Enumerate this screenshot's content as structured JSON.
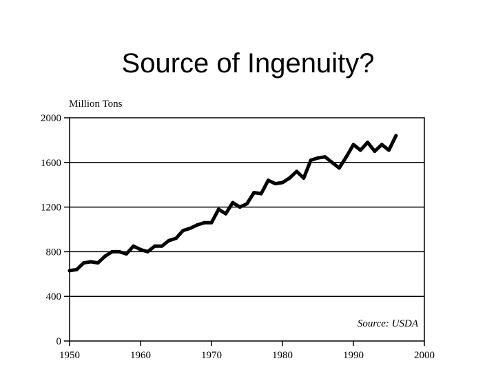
{
  "slide": {
    "title": "Source of Ingenuity?"
  },
  "chart_data": {
    "type": "line",
    "ylabel": "Million Tons",
    "source_note": "Source: USDA",
    "xlim": [
      1950,
      2000
    ],
    "ylim": [
      0,
      2000
    ],
    "x_ticks": [
      1950,
      1960,
      1970,
      1980,
      1990,
      2000
    ],
    "y_ticks": [
      0,
      400,
      800,
      1200,
      1600,
      2000
    ],
    "grid": "horizontal",
    "series": [
      {
        "x": [
          1950,
          1951,
          1952,
          1953,
          1954,
          1955,
          1956,
          1957,
          1958,
          1959,
          1960,
          1961,
          1962,
          1963,
          1964,
          1965,
          1966,
          1967,
          1968,
          1969,
          1970,
          1971,
          1972,
          1973,
          1974,
          1975,
          1976,
          1977,
          1978,
          1979,
          1980,
          1981,
          1982,
          1983,
          1984,
          1985,
          1986,
          1987,
          1988,
          1989,
          1990,
          1991,
          1992,
          1993,
          1994,
          1995,
          1996
        ],
        "y": [
          630,
          640,
          700,
          710,
          700,
          760,
          800,
          800,
          780,
          850,
          820,
          800,
          850,
          850,
          900,
          920,
          990,
          1010,
          1040,
          1060,
          1060,
          1180,
          1140,
          1240,
          1200,
          1230,
          1330,
          1320,
          1440,
          1410,
          1420,
          1460,
          1520,
          1460,
          1620,
          1640,
          1650,
          1600,
          1550,
          1650,
          1760,
          1710,
          1780,
          1700,
          1760,
          1710,
          1840
        ]
      }
    ],
    "colors": {
      "line": "#000000",
      "grid": "#000000"
    }
  }
}
